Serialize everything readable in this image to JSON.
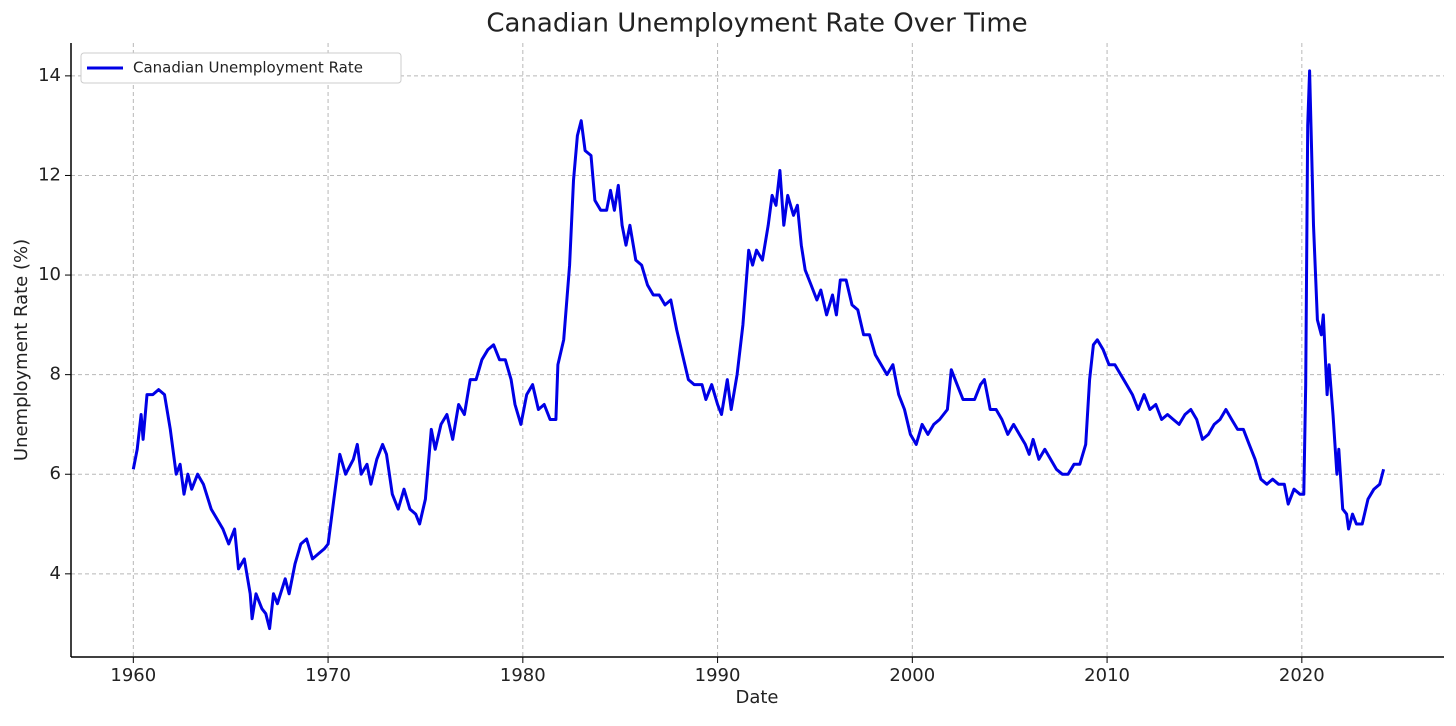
{
  "chart_data": {
    "type": "line",
    "title": "Canadian Unemployment Rate Over Time",
    "x_label": "Date",
    "y_label": "Unemployment Rate (%)",
    "x": [
      1960.0,
      1960.2,
      1960.4,
      1960.5,
      1960.7,
      1961.0,
      1961.3,
      1961.6,
      1961.9,
      1962.2,
      1962.4,
      1962.6,
      1962.8,
      1963.0,
      1963.3,
      1963.6,
      1964.0,
      1964.3,
      1964.6,
      1964.9,
      1965.2,
      1965.4,
      1965.7,
      1966.0,
      1966.1,
      1966.3,
      1966.6,
      1966.8,
      1967.0,
      1967.2,
      1967.4,
      1967.8,
      1968.0,
      1968.3,
      1968.6,
      1968.9,
      1969.2,
      1969.5,
      1969.8,
      1970.0,
      1970.3,
      1970.6,
      1970.9,
      1971.3,
      1971.5,
      1971.7,
      1972.0,
      1972.2,
      1972.5,
      1972.8,
      1973.0,
      1973.3,
      1973.6,
      1973.9,
      1974.2,
      1974.5,
      1974.7,
      1975.0,
      1975.3,
      1975.5,
      1975.8,
      1976.1,
      1976.4,
      1976.7,
      1977.0,
      1977.3,
      1977.6,
      1977.9,
      1978.2,
      1978.5,
      1978.8,
      1979.1,
      1979.4,
      1979.6,
      1979.9,
      1980.2,
      1980.5,
      1980.8,
      1981.1,
      1981.4,
      1981.7,
      1981.8,
      1982.1,
      1982.4,
      1982.6,
      1982.8,
      1983.0,
      1983.2,
      1983.5,
      1983.7,
      1984.0,
      1984.3,
      1984.5,
      1984.7,
      1984.9,
      1985.1,
      1985.3,
      1985.5,
      1985.8,
      1986.1,
      1986.4,
      1986.7,
      1987.0,
      1987.3,
      1987.6,
      1987.9,
      1988.2,
      1988.5,
      1988.8,
      1989.2,
      1989.4,
      1989.7,
      1990.0,
      1990.2,
      1990.5,
      1990.7,
      1991.0,
      1991.3,
      1991.6,
      1991.8,
      1992.0,
      1992.3,
      1992.6,
      1992.8,
      1993.0,
      1993.2,
      1993.4,
      1993.6,
      1993.9,
      1994.1,
      1994.3,
      1994.5,
      1994.8,
      1995.1,
      1995.3,
      1995.6,
      1995.9,
      1996.1,
      1996.3,
      1996.6,
      1996.9,
      1997.2,
      1997.5,
      1997.8,
      1998.1,
      1998.4,
      1998.7,
      1999.0,
      1999.3,
      1999.6,
      1999.9,
      2000.2,
      2000.5,
      2000.8,
      2001.1,
      2001.4,
      2001.8,
      2002.0,
      2002.3,
      2002.6,
      2002.9,
      2003.2,
      2003.5,
      2003.7,
      2004.0,
      2004.3,
      2004.6,
      2004.9,
      2005.2,
      2005.5,
      2005.8,
      2006.0,
      2006.2,
      2006.5,
      2006.8,
      2007.1,
      2007.4,
      2007.7,
      2008.0,
      2008.3,
      2008.6,
      2008.9,
      2009.1,
      2009.3,
      2009.5,
      2009.8,
      2010.1,
      2010.4,
      2010.7,
      2011.0,
      2011.3,
      2011.6,
      2011.9,
      2012.2,
      2012.5,
      2012.8,
      2013.1,
      2013.4,
      2013.7,
      2014.0,
      2014.3,
      2014.6,
      2014.9,
      2015.2,
      2015.5,
      2015.8,
      2016.1,
      2016.4,
      2016.7,
      2017.0,
      2017.3,
      2017.6,
      2017.9,
      2018.2,
      2018.5,
      2018.8,
      2019.1,
      2019.3,
      2019.6,
      2019.9,
      2020.1,
      2020.2,
      2020.3,
      2020.4,
      2020.6,
      2020.8,
      2021.0,
      2021.1,
      2021.3,
      2021.4,
      2021.6,
      2021.8,
      2021.9,
      2022.1,
      2022.3,
      2022.4,
      2022.6,
      2022.8,
      2023.1,
      2023.4,
      2023.7,
      2024.0,
      2024.2
    ],
    "series": [
      {
        "name": "Canadian Unemployment Rate",
        "color": "#0000e6",
        "values": [
          6.1,
          6.5,
          7.2,
          6.7,
          7.6,
          7.6,
          7.7,
          7.6,
          6.9,
          6.0,
          6.2,
          5.6,
          6.0,
          5.7,
          6.0,
          5.8,
          5.3,
          5.1,
          4.9,
          4.6,
          4.9,
          4.1,
          4.3,
          3.6,
          3.1,
          3.6,
          3.3,
          3.2,
          2.9,
          3.6,
          3.4,
          3.9,
          3.6,
          4.2,
          4.6,
          4.7,
          4.3,
          4.4,
          4.5,
          4.6,
          5.5,
          6.4,
          6.0,
          6.3,
          6.6,
          6.0,
          6.2,
          5.8,
          6.3,
          6.6,
          6.4,
          5.6,
          5.3,
          5.7,
          5.3,
          5.2,
          5.0,
          5.5,
          6.9,
          6.5,
          7.0,
          7.2,
          6.7,
          7.4,
          7.2,
          7.9,
          7.9,
          8.3,
          8.5,
          8.6,
          8.3,
          8.3,
          7.9,
          7.4,
          7.0,
          7.6,
          7.8,
          7.3,
          7.4,
          7.1,
          7.1,
          8.2,
          8.7,
          10.2,
          11.9,
          12.8,
          13.1,
          12.5,
          12.4,
          11.5,
          11.3,
          11.3,
          11.7,
          11.3,
          11.8,
          11.0,
          10.6,
          11.0,
          10.3,
          10.2,
          9.8,
          9.6,
          9.6,
          9.4,
          9.5,
          8.9,
          8.4,
          7.9,
          7.8,
          7.8,
          7.5,
          7.8,
          7.4,
          7.2,
          7.9,
          7.3,
          8.0,
          9.0,
          10.5,
          10.2,
          10.5,
          10.3,
          11.0,
          11.6,
          11.4,
          12.1,
          11.0,
          11.6,
          11.2,
          11.4,
          10.6,
          10.1,
          9.8,
          9.5,
          9.7,
          9.2,
          9.6,
          9.2,
          9.9,
          9.9,
          9.4,
          9.3,
          8.8,
          8.8,
          8.4,
          8.2,
          8.0,
          8.2,
          7.6,
          7.3,
          6.8,
          6.6,
          7.0,
          6.8,
          7.0,
          7.1,
          7.3,
          8.1,
          7.8,
          7.5,
          7.5,
          7.5,
          7.8,
          7.9,
          7.3,
          7.3,
          7.1,
          6.8,
          7.0,
          6.8,
          6.6,
          6.4,
          6.7,
          6.3,
          6.5,
          6.3,
          6.1,
          6.0,
          6.0,
          6.2,
          6.2,
          6.6,
          7.9,
          8.6,
          8.7,
          8.5,
          8.2,
          8.2,
          8.0,
          7.8,
          7.6,
          7.3,
          7.6,
          7.3,
          7.4,
          7.1,
          7.2,
          7.1,
          7.0,
          7.2,
          7.3,
          7.1,
          6.7,
          6.8,
          7.0,
          7.1,
          7.3,
          7.1,
          6.9,
          6.9,
          6.6,
          6.3,
          5.9,
          5.8,
          5.9,
          5.8,
          5.8,
          5.4,
          5.7,
          5.6,
          5.6,
          7.8,
          13.0,
          14.1,
          11.0,
          9.1,
          8.8,
          9.2,
          7.6,
          8.2,
          7.2,
          6.0,
          6.5,
          5.3,
          5.2,
          4.9,
          5.2,
          5.0,
          5.0,
          5.5,
          5.7,
          5.8,
          6.1
        ]
      }
    ],
    "xlim": [
      1956.8,
      2027.3
    ],
    "xticks": [
      1960,
      1970,
      1980,
      1990,
      2000,
      2010,
      2020
    ],
    "ylim": [
      2.33,
      14.66
    ],
    "yticks": [
      4,
      6,
      8,
      10,
      12,
      14
    ],
    "grid": true,
    "legend": "upper left"
  }
}
